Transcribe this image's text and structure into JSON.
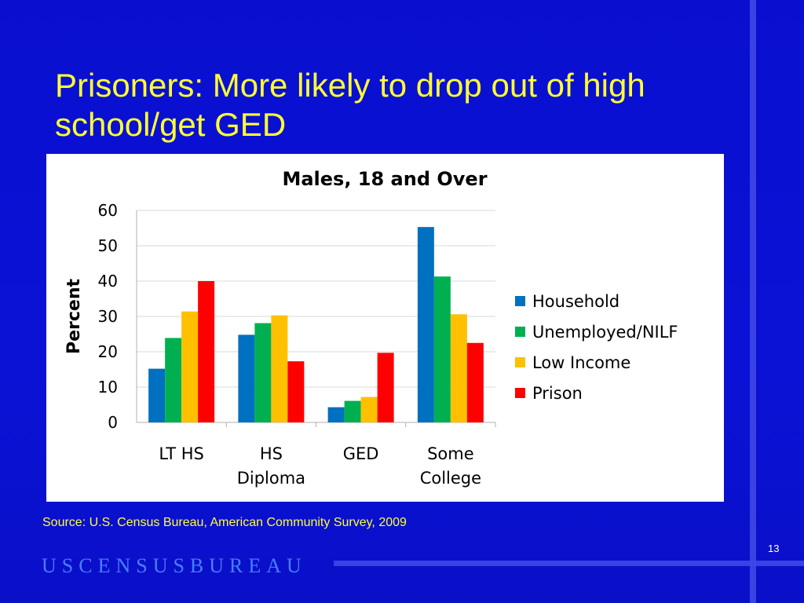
{
  "slide": {
    "title": "Prisoners: More likely to drop out of high school/get GED",
    "source": "Source: U.S. Census Bureau, American Community Survey, 2009",
    "page_number": "13",
    "logo_text": "USCENSUSBUREAU"
  },
  "colors": {
    "background": "#0b10d0",
    "title": "#ffff33",
    "accent_bar": "#3f48e6",
    "logo": "#4a7bff"
  },
  "chart_data": {
    "type": "bar",
    "title": "Males, 18 and Over",
    "xlabel": "",
    "ylabel": "Percent",
    "ylim": [
      0,
      60
    ],
    "yticks": [
      0,
      10,
      20,
      30,
      40,
      50,
      60
    ],
    "grid": true,
    "legend_position": "right",
    "categories": [
      [
        "LT HS"
      ],
      [
        "HS",
        "Diploma"
      ],
      [
        "GED"
      ],
      [
        "Some",
        "College"
      ]
    ],
    "series": [
      {
        "name": "Household",
        "color": "#0070c0",
        "values": [
          15.2,
          24.8,
          4.3,
          55.3
        ]
      },
      {
        "name": "Unemployed/NILF",
        "color": "#00b050",
        "values": [
          23.9,
          28.1,
          6.1,
          41.3
        ]
      },
      {
        "name": "Low Income",
        "color": "#ffc000",
        "values": [
          31.4,
          30.3,
          7.2,
          30.6
        ]
      },
      {
        "name": "Prison",
        "color": "#ff0000",
        "values": [
          40.0,
          17.3,
          19.7,
          22.5
        ]
      }
    ]
  }
}
